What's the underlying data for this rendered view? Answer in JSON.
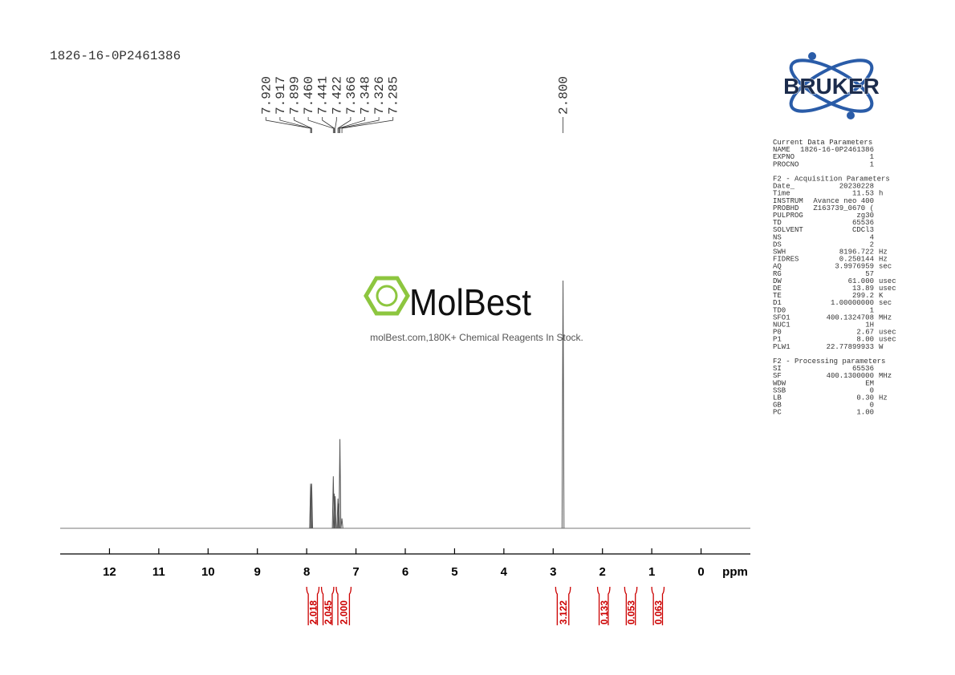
{
  "header": {
    "sample_id": "1826-16-0P2461386"
  },
  "logo": {
    "brand": "BRUKER"
  },
  "watermark": {
    "brand": "MolBest",
    "tagline": "molBest.com,180K+ Chemical Reagents In Stock."
  },
  "parameters": [
    {
      "title": "Current Data Parameters",
      "rows": [
        [
          "NAME",
          "1826-16-0P2461386"
        ],
        [
          "EXPNO",
          "1"
        ],
        [
          "PROCNO",
          "1"
        ]
      ]
    },
    {
      "title": "F2 - Acquisition Parameters",
      "rows": [
        [
          "Date_",
          "20230228"
        ],
        [
          "Time",
          "11.53",
          "h"
        ],
        [
          "INSTRUM",
          "Avance neo 400"
        ],
        [
          "PROBHD",
          "Z163739_0670 ("
        ],
        [
          "PULPROG",
          "zg30"
        ],
        [
          "TD",
          "65536"
        ],
        [
          "SOLVENT",
          "CDCl3"
        ],
        [
          "NS",
          "4"
        ],
        [
          "DS",
          "2"
        ],
        [
          "SWH",
          "8196.722",
          "Hz"
        ],
        [
          "FIDRES",
          "0.250144",
          "Hz"
        ],
        [
          "AQ",
          "3.9976959",
          "sec"
        ],
        [
          "RG",
          "57"
        ],
        [
          "DW",
          "61.000",
          "usec"
        ],
        [
          "DE",
          "13.89",
          "usec"
        ],
        [
          "TE",
          "299.2",
          "K"
        ],
        [
          "D1",
          "1.00000000",
          "sec"
        ],
        [
          "TD0",
          "1"
        ],
        [
          "SFO1",
          "400.1324708",
          "MHz"
        ],
        [
          "NUC1",
          "1H"
        ],
        [
          "P0",
          "2.67",
          "usec"
        ],
        [
          "P1",
          "8.00",
          "usec"
        ],
        [
          "PLW1",
          "22.77899933",
          "W"
        ]
      ]
    },
    {
      "title": "F2 - Processing parameters",
      "rows": [
        [
          "SI",
          "65536"
        ],
        [
          "SF",
          "400.1300000",
          "MHz"
        ],
        [
          "WDW",
          "EM"
        ],
        [
          "SSB",
          "0"
        ],
        [
          "LB",
          "0.30",
          "Hz"
        ],
        [
          "GB",
          "0"
        ],
        [
          "PC",
          "1.00"
        ]
      ]
    }
  ],
  "chart_data": {
    "type": "nmr",
    "x_label": "ppm",
    "xlim": [
      13,
      -1
    ],
    "xticks": [
      12,
      11,
      10,
      9,
      8,
      7,
      6,
      5,
      4,
      3,
      2,
      1,
      0
    ],
    "color": "#555555",
    "peaks": {
      "x": [
        7.92,
        7.917,
        7.899,
        7.46,
        7.441,
        7.422,
        7.366,
        7.348,
        7.326,
        7.285,
        2.8
      ],
      "x_labels": [
        "7.920",
        "7.917",
        "7.899",
        "7.460",
        "7.441",
        "7.422",
        "7.366",
        "7.348",
        "7.326",
        "7.285",
        "2.800"
      ],
      "values": [
        18,
        17,
        18,
        21,
        14,
        13,
        12,
        10,
        36,
        4,
        100
      ]
    },
    "integrals": {
      "color": "#cc0000",
      "ranges": [
        [
          8.0,
          7.75
        ],
        [
          7.7,
          7.45
        ],
        [
          7.4,
          7.1
        ],
        [
          2.95,
          2.65
        ],
        [
          2.1,
          1.85
        ],
        [
          1.55,
          1.3
        ],
        [
          1.0,
          0.75
        ]
      ],
      "values": [
        2.018,
        2.045,
        2.0,
        3.122,
        0.133,
        0.053,
        0.063
      ],
      "value_labels": [
        "2.018",
        "2.045",
        "2.000",
        "3.122",
        "0.133",
        "0.053",
        "0.063"
      ]
    }
  }
}
